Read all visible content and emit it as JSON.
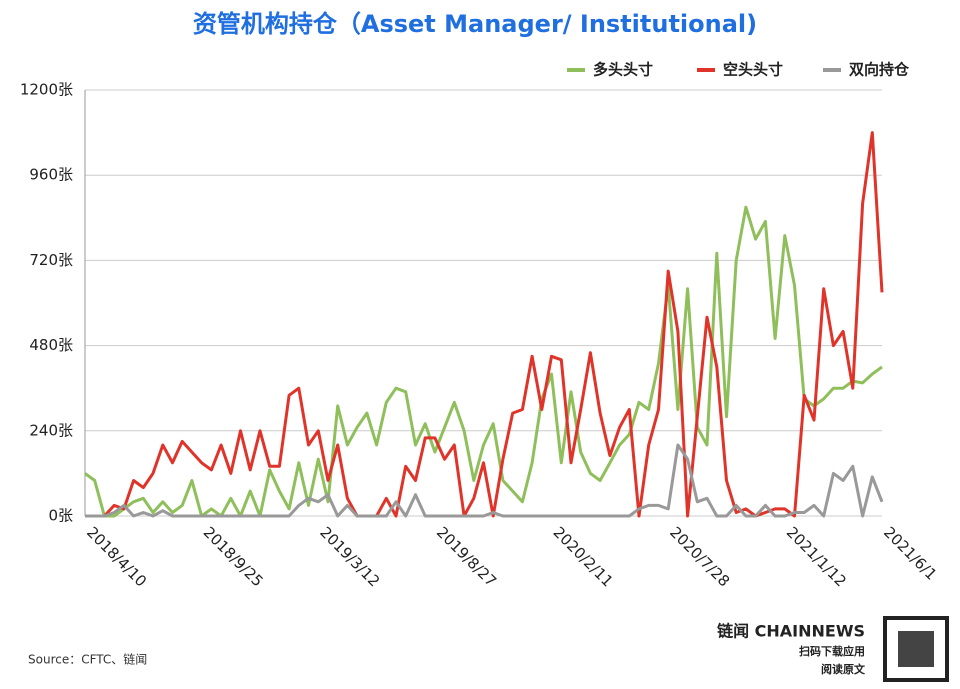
{
  "chart_data": {
    "type": "line",
    "title": "资管机构持仓（Asset Manager/ Institutional)",
    "categories": [
      "2018/4/10",
      null,
      null,
      null,
      null,
      null,
      null,
      null,
      null,
      null,
      null,
      null,
      "2018/9/25",
      null,
      null,
      null,
      null,
      null,
      null,
      null,
      null,
      null,
      null,
      null,
      "2019/3/12",
      null,
      null,
      null,
      null,
      null,
      null,
      null,
      null,
      null,
      null,
      null,
      "2019/8/27",
      null,
      null,
      null,
      null,
      null,
      null,
      null,
      null,
      null,
      null,
      null,
      "2020/2/11",
      null,
      null,
      null,
      null,
      null,
      null,
      null,
      null,
      null,
      null,
      null,
      "2020/7/28",
      null,
      null,
      null,
      null,
      null,
      null,
      null,
      null,
      null,
      null,
      null,
      "2021/1/12",
      null,
      null,
      null,
      null,
      null,
      null,
      null,
      null,
      null,
      "2021/6/1"
    ],
    "series": [
      {
        "name": "多头头寸",
        "color": "#8fbf5a",
        "values": [
          120,
          100,
          0,
          0,
          20,
          40,
          50,
          10,
          40,
          10,
          30,
          100,
          0,
          20,
          0,
          50,
          0,
          70,
          0,
          130,
          70,
          20,
          150,
          30,
          160,
          40,
          310,
          200,
          250,
          290,
          200,
          320,
          360,
          350,
          200,
          260,
          180,
          250,
          320,
          240,
          100,
          200,
          260,
          100,
          70,
          40,
          150,
          330,
          400,
          150,
          350,
          180,
          120,
          100,
          150,
          200,
          230,
          320,
          300,
          430,
          650,
          300,
          640,
          250,
          200,
          740,
          280,
          720,
          870,
          780,
          830,
          500,
          790,
          650,
          330,
          310,
          330,
          360,
          360,
          380,
          375,
          400,
          420
        ]
      },
      {
        "name": "空头头寸",
        "color": "#e0342a",
        "values": [
          0,
          0,
          0,
          30,
          20,
          100,
          80,
          120,
          200,
          150,
          210,
          180,
          150,
          130,
          200,
          120,
          240,
          130,
          240,
          140,
          140,
          340,
          360,
          200,
          240,
          100,
          200,
          50,
          0,
          0,
          0,
          50,
          0,
          140,
          100,
          220,
          220,
          160,
          200,
          0,
          50,
          150,
          0,
          160,
          290,
          300,
          450,
          300,
          450,
          440,
          150,
          300,
          460,
          290,
          170,
          250,
          300,
          0,
          200,
          300,
          690,
          520,
          0,
          280,
          560,
          420,
          100,
          10,
          20,
          0,
          10,
          20,
          20,
          0,
          340,
          270,
          640,
          480,
          520,
          360,
          880,
          1080,
          630
        ]
      },
      {
        "name": "双向持仓",
        "color": "#999999",
        "values": [
          0,
          0,
          0,
          10,
          30,
          0,
          10,
          0,
          15,
          0,
          0,
          0,
          0,
          0,
          0,
          0,
          0,
          0,
          0,
          0,
          0,
          0,
          30,
          50,
          40,
          60,
          0,
          30,
          0,
          0,
          0,
          0,
          40,
          0,
          60,
          0,
          0,
          0,
          0,
          0,
          0,
          0,
          10,
          0,
          0,
          0,
          0,
          0,
          0,
          0,
          0,
          0,
          0,
          0,
          0,
          0,
          0,
          20,
          30,
          30,
          20,
          200,
          160,
          40,
          50,
          0,
          0,
          30,
          0,
          0,
          30,
          0,
          0,
          10,
          10,
          30,
          0,
          120,
          100,
          140,
          0,
          110,
          40
        ]
      }
    ],
    "ylim": [
      0,
      1200
    ],
    "yticks": [
      {
        "value": 0,
        "label": "0张"
      },
      {
        "value": 240,
        "label": "240张"
      },
      {
        "value": 480,
        "label": "480张"
      },
      {
        "value": 720,
        "label": "720张"
      },
      {
        "value": 960,
        "label": "960张"
      },
      {
        "value": 1200,
        "label": "1200张"
      }
    ],
    "grid": true,
    "legend": "top-right",
    "source": "Source：CFTC、链闻",
    "brand": "链闻 CHAINNEWS",
    "brand_lines": [
      "扫码下载应用",
      "阅读原文"
    ]
  }
}
